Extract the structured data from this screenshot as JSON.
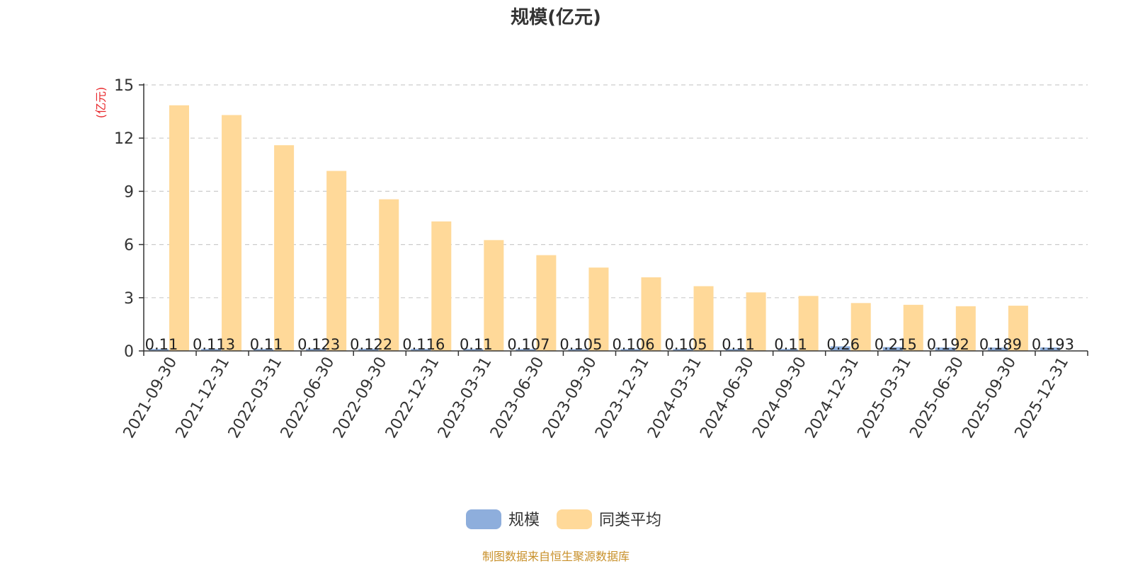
{
  "chart_data": {
    "type": "bar",
    "title": "规模(亿元)",
    "ylabel": "(亿元)",
    "ylim": [
      0,
      15
    ],
    "yticks": [
      0,
      3,
      6,
      9,
      12,
      15
    ],
    "grid": true,
    "legend_position": "bottom",
    "categories": [
      "2021-09-30",
      "2021-12-31",
      "2022-03-31",
      "2022-06-30",
      "2022-09-30",
      "2022-12-31",
      "2023-03-31",
      "2023-06-30",
      "2023-09-30",
      "2023-12-31",
      "2024-03-31",
      "2024-06-30",
      "2024-09-30",
      "2024-12-31",
      "2025-03-31",
      "2025-06-30",
      "2025-09-30",
      "2025-12-31"
    ],
    "series": [
      {
        "name": "规模",
        "color": "#8eaedc",
        "values": [
          0.11,
          0.113,
          0.11,
          0.123,
          0.122,
          0.116,
          0.11,
          0.107,
          0.105,
          0.106,
          0.105,
          0.11,
          0.11,
          0.26,
          0.215,
          0.192,
          0.189,
          0.193
        ],
        "labels": [
          "0.11",
          "0.113",
          "0.11",
          "0.123",
          "0.122",
          "0.116",
          "0.11",
          "0.107",
          "0.105",
          "0.106",
          "0.105",
          "0.11",
          "0.11",
          "0.26",
          "0.215",
          "0.192",
          "0.189",
          "0.193"
        ]
      },
      {
        "name": "同类平均",
        "color": "#ffd999",
        "values": [
          13.85,
          13.3,
          11.6,
          10.15,
          8.55,
          7.3,
          6.25,
          5.4,
          4.7,
          4.15,
          3.65,
          3.3,
          3.1,
          2.7,
          2.6,
          2.52,
          2.55,
          null
        ]
      }
    ]
  },
  "source_text": "制图数据来自恒生聚源数据库"
}
